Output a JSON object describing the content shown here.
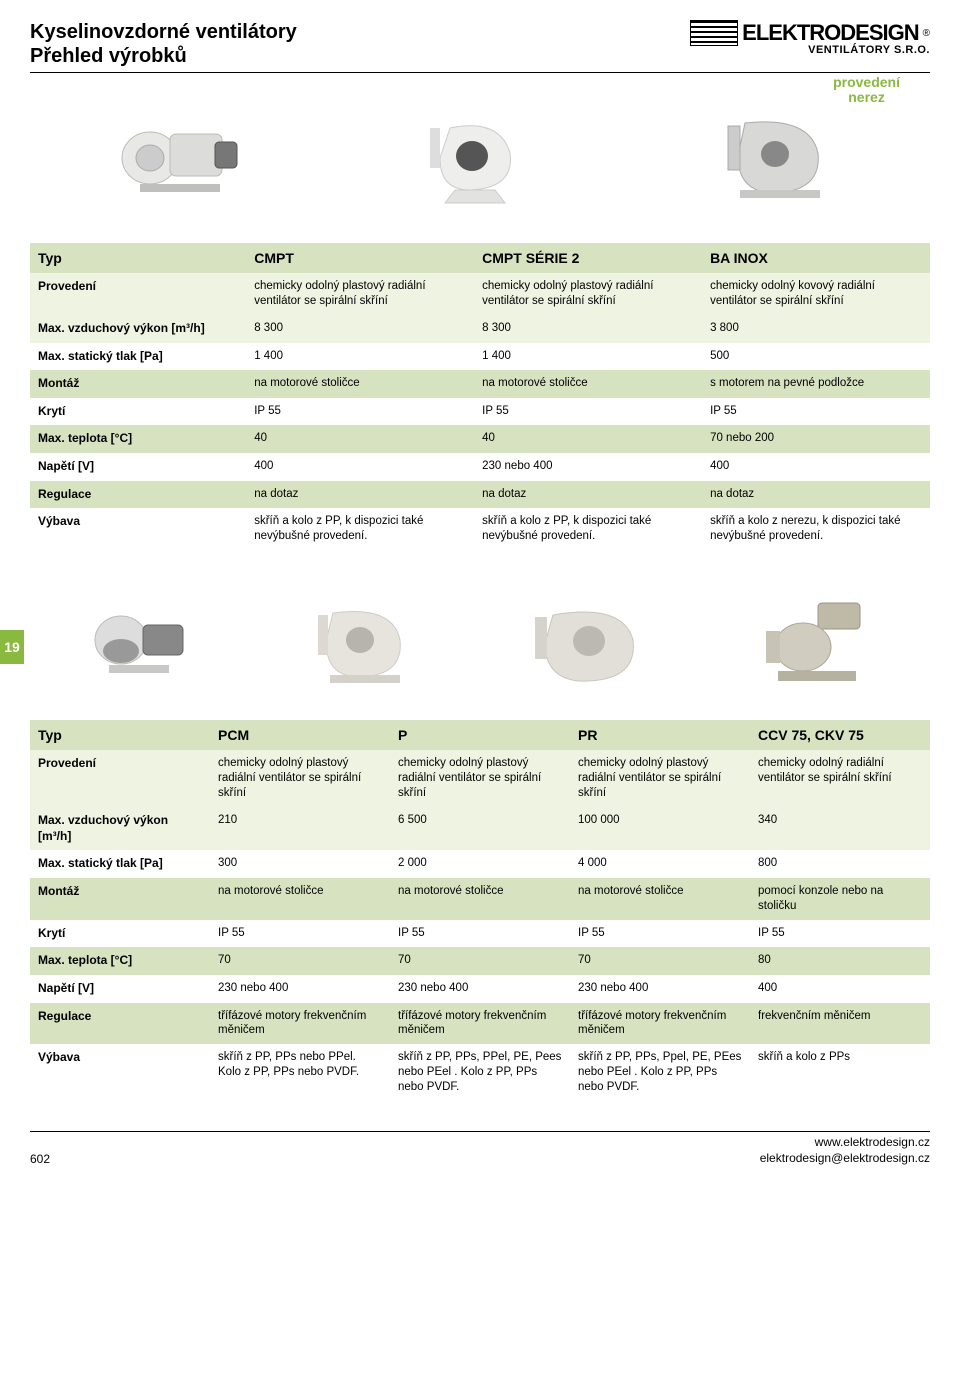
{
  "header": {
    "title_line1": "Kyselinovzdorné ventilátory",
    "title_line2": "Přehled výrobků",
    "brand": "ELEKTRODESIGN",
    "brand_sub": "VENTILÁTORY S.R.O.",
    "reg": "®"
  },
  "top_label": "provedení\nnerez",
  "side_tab": "19",
  "table1": {
    "rows": [
      {
        "band": "band-dark",
        "label": "Typ",
        "c1": "CMPT",
        "c2": "CMPT SÉRIE 2",
        "c3": "BA INOX",
        "typ": true
      },
      {
        "band": "band-light",
        "label": "Provedení",
        "c1": "chemicky odolný plastový radiální ventilátor se spirální skříní",
        "c2": "chemicky odolný plastový radiální ventilátor se spirální skříní",
        "c3": "chemicky odolný kovový radiální ventilátor se spirální skříní"
      },
      {
        "band": "band-light",
        "label": "Max. vzduchový výkon [m³/h]",
        "c1": "8 300",
        "c2": "8 300",
        "c3": "3 800"
      },
      {
        "band": "",
        "label": "Max. statický tlak [Pa]",
        "c1": "1 400",
        "c2": "1 400",
        "c3": "500"
      },
      {
        "band": "band-dark",
        "label": "Montáž",
        "c1": "na motorové stoličce",
        "c2": "na motorové stoličce",
        "c3": "s motorem na pevné podložce"
      },
      {
        "band": "",
        "label": "Krytí",
        "c1": "IP 55",
        "c2": "IP 55",
        "c3": "IP 55"
      },
      {
        "band": "band-dark",
        "label": "Max. teplota [°C]",
        "c1": "40",
        "c2": "40",
        "c3": "70 nebo 200"
      },
      {
        "band": "",
        "label": "Napětí [V]",
        "c1": "400",
        "c2": "230 nebo 400",
        "c3": "400"
      },
      {
        "band": "band-dark",
        "label": "Regulace",
        "c1": "na dotaz",
        "c2": "na dotaz",
        "c3": "na dotaz"
      },
      {
        "band": "",
        "label": "Výbava",
        "c1": "skříň a kolo z PP, k dispozici také nevýbušné provedení.",
        "c2": "skříň a kolo z PP, k dispozici také nevýbušné provedení.",
        "c3": "skříň a kolo z nerezu, k dispozici také nevýbušné provedení."
      }
    ]
  },
  "table2": {
    "rows": [
      {
        "band": "band-dark",
        "label": "Typ",
        "c1": "PCM",
        "c2": "P",
        "c3": "PR",
        "c4": "CCV 75, CKV 75",
        "typ": true
      },
      {
        "band": "band-light",
        "label": "Provedení",
        "c1": "chemicky odolný plastový radiální ventilátor se spirální skříní",
        "c2": "chemicky odolný plastový radiální ventilátor se spirální skříní",
        "c3": "chemicky odolný plastový radiální ventilátor se spirální skříní",
        "c4": "chemicky odolný radiální ventilátor se spirální skříní"
      },
      {
        "band": "band-light",
        "label": "Max. vzduchový výkon [m³/h]",
        "c1": "210",
        "c2": "6 500",
        "c3": "100 000",
        "c4": "340"
      },
      {
        "band": "",
        "label": "Max. statický tlak [Pa]",
        "c1": "300",
        "c2": "2 000",
        "c3": "4 000",
        "c4": "800"
      },
      {
        "band": "band-dark",
        "label": "Montáž",
        "c1": "na motorové stoličce",
        "c2": "na motorové stoličce",
        "c3": "na motorové stoličce",
        "c4": "pomocí konzole nebo na stoličku"
      },
      {
        "band": "",
        "label": "Krytí",
        "c1": "IP 55",
        "c2": "IP 55",
        "c3": "IP 55",
        "c4": "IP 55"
      },
      {
        "band": "band-dark",
        "label": "Max. teplota [°C]",
        "c1": "70",
        "c2": "70",
        "c3": "70",
        "c4": "80"
      },
      {
        "band": "",
        "label": "Napětí [V]",
        "c1": "230 nebo 400",
        "c2": "230 nebo 400",
        "c3": "230 nebo 400",
        "c4": "400"
      },
      {
        "band": "band-dark",
        "label": "Regulace",
        "c1": "třífázové motory frekvenčním měničem",
        "c2": "třífázové motory frekvenčním měničem",
        "c3": "třífázové motory frekvenčním měničem",
        "c4": "frekvenčním měničem"
      },
      {
        "band": "",
        "label": "Výbava",
        "c1": "skříň z PP, PPs nebo PPel. Kolo z PP, PPs nebo PVDF.",
        "c2": "skříň z PP, PPs, PPel, PE, Pees nebo PEel . Kolo z PP, PPs nebo PVDF.",
        "c3": "skříň z PP, PPs, Ppel, PE, PEes nebo PEel . Kolo z PP, PPs nebo PVDF.",
        "c4": "skříň a kolo z PPs"
      }
    ]
  },
  "footer": {
    "page": "602",
    "url": "www.elektrodesign.cz",
    "email": "elektrodesign@elektrodesign.cz"
  },
  "colors": {
    "accent": "#8ab93f",
    "band_dark": "#d6e2c0",
    "band_light": "#eef3e2"
  }
}
